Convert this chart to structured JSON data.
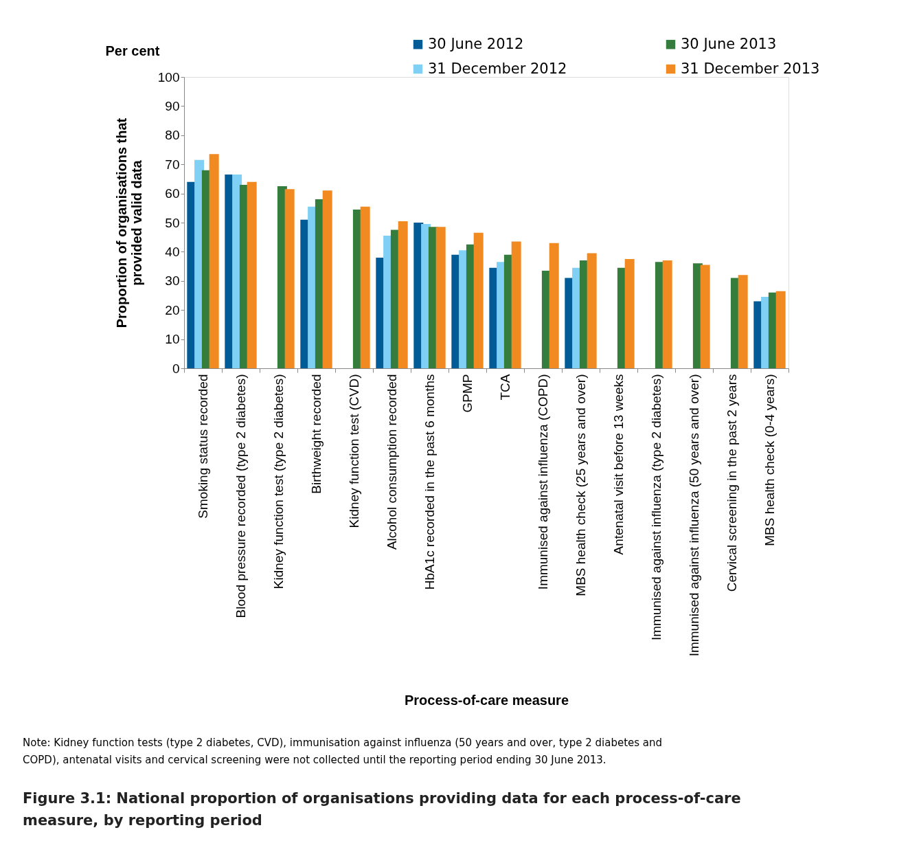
{
  "chart_data": {
    "type": "bar",
    "title": "Figure 3.1: National proportion of organisations providing data for each process-of-care measure, by reporting period",
    "categories": [
      "Smoking status recorded",
      "Blood pressure recorded (type 2 diabetes)",
      "Kidney function test (type 2 diabetes)",
      "Birthweight recorded",
      "Kidney function test (CVD)",
      "Alcohol consumption recorded",
      "HbA1c recorded in the past 6 months",
      "GPMP",
      "TCA",
      "Immunised against influenza (COPD)",
      "MBS health check (25 years and over)",
      "Antenatal visit before 13 weeks",
      "Immunised against influenza (type 2 diabetes)",
      "Immunised against influenza (50 years and over)",
      "Cervical screening in the past 2 years",
      "MBS health check (0-4 years)"
    ],
    "series": [
      {
        "name": "30 June 2012",
        "color": "#005b96",
        "values": [
          64,
          66.5,
          null,
          51,
          null,
          38,
          50,
          39,
          34.5,
          null,
          31,
          null,
          null,
          null,
          null,
          23
        ]
      },
      {
        "name": "31 December 2012",
        "color": "#7fd0f4",
        "values": [
          71.5,
          66.5,
          null,
          55.5,
          null,
          45.5,
          49.5,
          40.5,
          36.5,
          null,
          34.5,
          null,
          null,
          null,
          null,
          24.5
        ]
      },
      {
        "name": "30 June 2013",
        "color": "#357d3c",
        "values": [
          68,
          63,
          62.5,
          58,
          54.5,
          47.5,
          48.5,
          42.5,
          39,
          33.5,
          37,
          34.5,
          36.5,
          36,
          31,
          26
        ]
      },
      {
        "name": "31 December 2013",
        "color": "#f28a22",
        "values": [
          73.5,
          64,
          61.5,
          61,
          55.5,
          50.5,
          48.5,
          46.5,
          43.5,
          43,
          39.5,
          37.5,
          37,
          35.5,
          32,
          26.5
        ]
      }
    ],
    "xlabel": "Process-of-care measure",
    "ylabel": "Proportion of organisations that provided valid data",
    "ylim": [
      0,
      100
    ],
    "yticks": [
      0,
      10,
      20,
      30,
      40,
      50,
      60,
      70,
      80,
      90,
      100
    ],
    "grid": false,
    "legend": "top right",
    "annotations": [
      "Per cent",
      "Note: Kidney function tests (type 2 diabetes, CVD), immunisation against influenza (50 years and over, type 2 diabetes and COPD), antenatal visits and cervical screening were not collected until the reporting period ending 30 June 2013."
    ]
  }
}
